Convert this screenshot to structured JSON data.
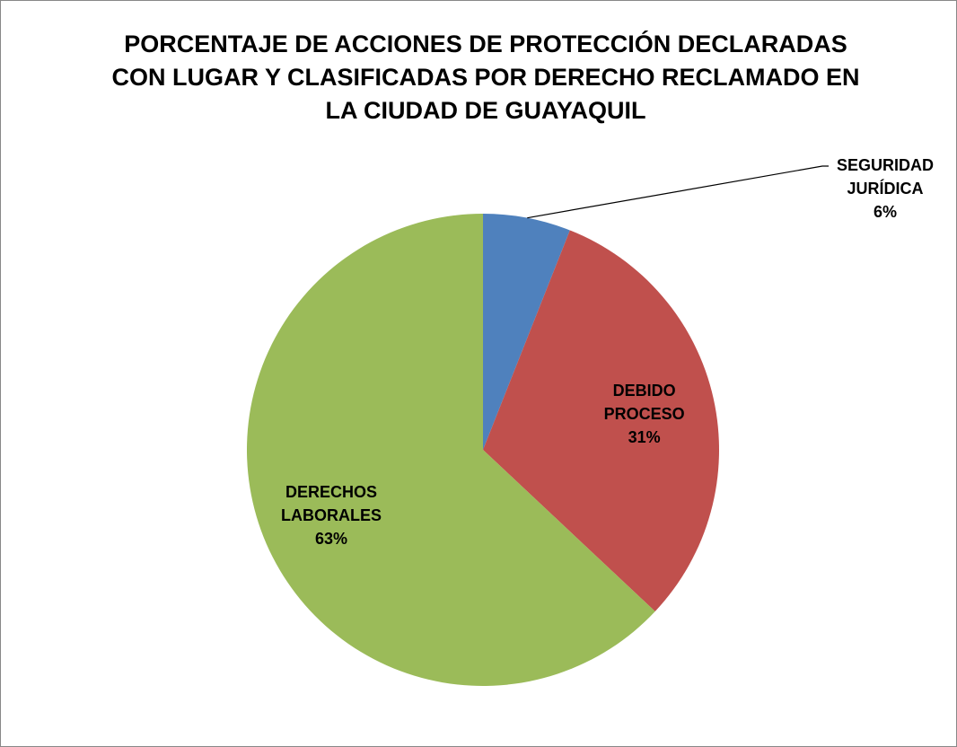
{
  "chart_data": {
    "type": "pie",
    "title": "PORCENTAJE DE ACCIONES DE PROTECCIÓN DECLARADAS CON LUGAR Y CLASIFICADAS POR DERECHO RECLAMADO EN LA CIUDAD DE GUAYAQUIL",
    "categories": [
      "SEGURIDAD JURÍDICA",
      "DEBIDO PROCESO",
      "DERECHOS LABORALES"
    ],
    "values": [
      6,
      31,
      63
    ],
    "value_labels": [
      "6%",
      "31%",
      "63%"
    ],
    "colors": [
      "#4f81bd",
      "#c0504d",
      "#9bbb59"
    ]
  }
}
